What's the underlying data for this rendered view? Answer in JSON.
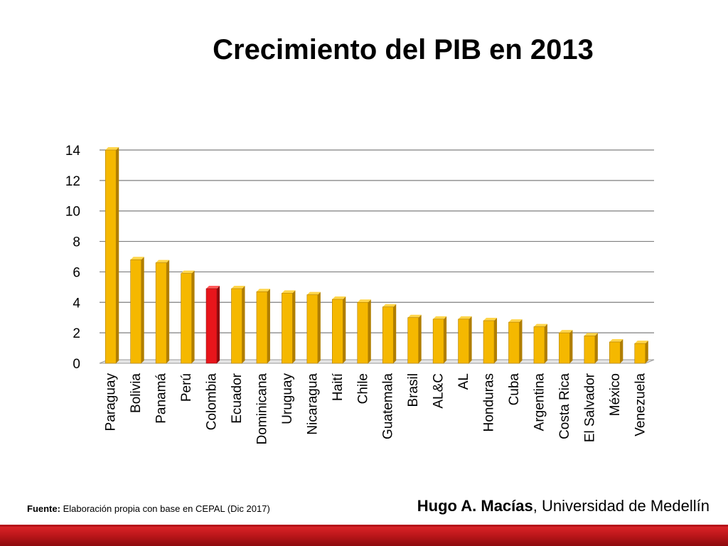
{
  "slide": {
    "title": "Crecimiento del PIB en 2013",
    "source_label": "Fuente:",
    "source_text": " Elaboración propia con base en CEPAL (Dic 2017)",
    "author_name": "Hugo A. Macías",
    "author_affiliation": ", Universidad de Medellín"
  },
  "colors": {
    "bar": "#f5b800",
    "bar_side": "#b07e00",
    "bar_top": "#ffd54a",
    "highlight": "#e8151b",
    "highlight_side": "#8f0a0c",
    "highlight_top": "#ff5a5a",
    "footer": "#c0181c"
  },
  "chart_data": {
    "type": "bar",
    "title": "",
    "xlabel": "",
    "ylabel": "",
    "ylim": [
      0,
      14
    ],
    "yticks": [
      0,
      2,
      4,
      6,
      8,
      10,
      12,
      14
    ],
    "grid": true,
    "legend": "none",
    "highlight_category": "Colombia",
    "categories": [
      "Paraguay",
      "Bolivia",
      "Panamá",
      "Perú",
      "Colombia",
      "Ecuador",
      "Dominicana",
      "Uruguay",
      "Nicaragua",
      "Haití",
      "Chile",
      "Guatemala",
      "Brasil",
      "AL&C",
      "AL",
      "Honduras",
      "Cuba",
      "Argentina",
      "Costa Rica",
      "El Salvador",
      "México",
      "Venezuela"
    ],
    "values": [
      14.0,
      6.8,
      6.6,
      5.9,
      4.9,
      4.9,
      4.7,
      4.6,
      4.5,
      4.2,
      4.0,
      3.7,
      3.0,
      2.9,
      2.9,
      2.8,
      2.7,
      2.4,
      2.0,
      1.8,
      1.4,
      1.3
    ]
  }
}
